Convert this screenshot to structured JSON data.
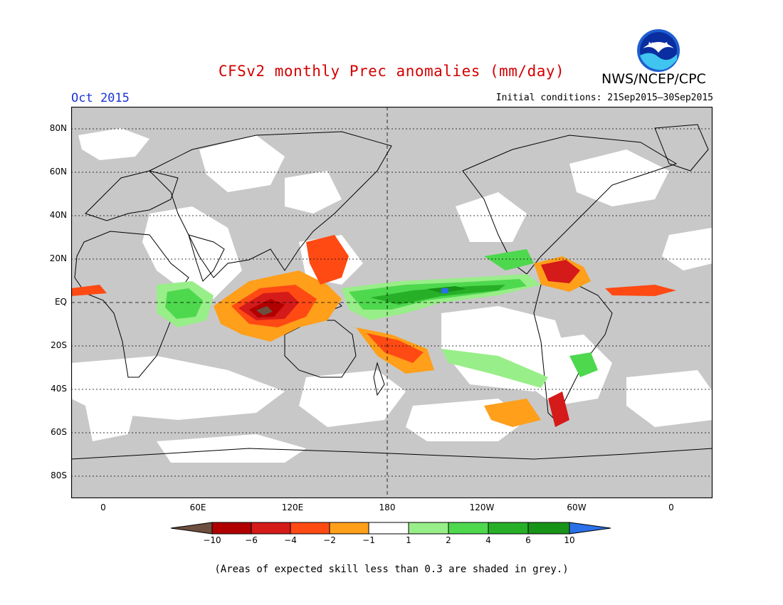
{
  "title": "CFSv2 monthly Prec anomalies (mm/day)",
  "agency": "NWS/NCEP/CPC",
  "logo_text": "NOAA",
  "valid_month": "Oct 2015",
  "initial_conditions": "Initial conditions: 21Sep2015–30Sep2015",
  "lat_labels": [
    "80N",
    "60N",
    "40N",
    "20N",
    "EQ",
    "20S",
    "40S",
    "60S",
    "80S"
  ],
  "lon_labels": [
    "0",
    "60E",
    "120E",
    "180",
    "120W",
    "60W",
    "0"
  ],
  "colorbar": {
    "labels": [
      "−10",
      "−6",
      "−4",
      "−2",
      "−1",
      "1",
      "2",
      "4",
      "6",
      "10"
    ],
    "colors": [
      "#6e4f3f",
      "#b00000",
      "#d51a1a",
      "#ff4a14",
      "#ff9f1a",
      "#ffffff",
      "#98ee88",
      "#4ed84e",
      "#27b027",
      "#179317",
      "#2a70e8"
    ]
  },
  "colors": {
    "grey_low_skill": "#c8c8c8",
    "title_red": "#d40000",
    "date_blue": "#1a35d6"
  },
  "footnote": "(Areas of expected skill less than 0.3 are shaded in grey.)"
}
